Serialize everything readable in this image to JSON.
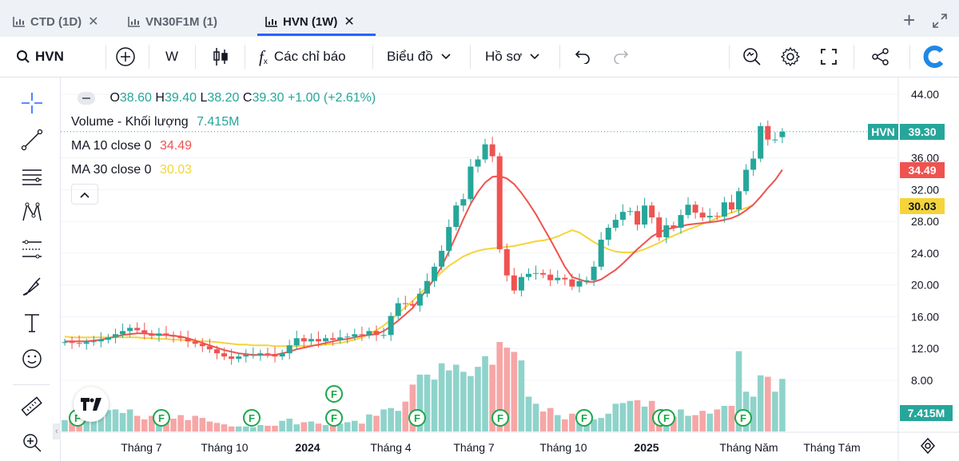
{
  "tabs": [
    {
      "label": "CTD (1D)",
      "active": false
    },
    {
      "label": "VN30F1M (1)",
      "active": false
    },
    {
      "label": "HVN (1W)",
      "active": true
    }
  ],
  "toolbar": {
    "symbol": "HVN",
    "interval": "W",
    "indicators_label": "Các chỉ báo",
    "chart_type_label": "Biểu đồ",
    "profile_label": "Hồ sơ"
  },
  "legend": {
    "open_label": "O",
    "open": "38.60",
    "high_label": "H",
    "high": "39.40",
    "low_label": "L",
    "low": "38.20",
    "close_label": "C",
    "close": "39.30",
    "change": "+1.00 (+2.61%)",
    "volume_label": "Volume - Khối lượng",
    "volume_value": "7.415M",
    "ma10_label": "MA 10 close 0",
    "ma10_value": "34.49",
    "ma30_label": "MA 30 close 0",
    "ma30_value": "30.03"
  },
  "price_tags": {
    "symbol": "HVN",
    "last": "39.30",
    "ma10": "34.49",
    "ma30": "30.03",
    "volume": "7.415M"
  },
  "colors": {
    "up": "#26a69a",
    "down": "#ef5350",
    "ma10": "#ef5350",
    "ma30": "#f5d43a",
    "accent": "#2962ff",
    "vol_up": "#8fd3cb",
    "vol_down": "#f6a6a6"
  },
  "chart_data": {
    "type": "candlestick",
    "ylim": [
      8,
      44
    ],
    "y_ticks": [
      "44.00",
      "36.00",
      "32.00",
      "28.00",
      "24.00",
      "20.00",
      "16.00",
      "12.00",
      "8.00"
    ],
    "x_ticks": [
      "Tháng 7",
      "Tháng 10",
      "2024",
      "Tháng 4",
      "Tháng 7",
      "Tháng 10",
      "2025",
      "Tháng Năm",
      "Tháng Tám"
    ],
    "closes": [
      12.8,
      12.7,
      12.6,
      12.8,
      12.9,
      13.1,
      13.4,
      13.8,
      14.2,
      14.6,
      14.3,
      13.9,
      13.6,
      13.9,
      13.7,
      13.5,
      13.3,
      12.9,
      12.6,
      12.3,
      11.9,
      11.4,
      11.0,
      10.7,
      11.0,
      11.2,
      11.2,
      11.4,
      11.3,
      11.0,
      11.4,
      12.4,
      13.3,
      12.9,
      13.2,
      12.9,
      13.3,
      13.1,
      13.4,
      13.5,
      13.8,
      13.7,
      14.2,
      13.7,
      13.7,
      16.1,
      17.7,
      17.6,
      17.4,
      18.9,
      20.5,
      22.3,
      24.3,
      27.3,
      30.0,
      30.8,
      34.9,
      35.8,
      37.7,
      36.2,
      24.5,
      21.2,
      19.3,
      21.0,
      21.4,
      21.5,
      21.3,
      20.6,
      20.9,
      20.7,
      19.8,
      20.5,
      20.6,
      22.3,
      25.7,
      27.2,
      28.2,
      29.2,
      29.3,
      27.6,
      30.0,
      28.5,
      26.0,
      27.5,
      27.2,
      28.8,
      30.1,
      29.1,
      28.5,
      28.7,
      28.6,
      30.4,
      29.5,
      31.8,
      34.5,
      35.9,
      40.0,
      38.3,
      38.3,
      39.3
    ],
    "opens": [
      12.8,
      12.8,
      12.7,
      12.6,
      12.8,
      12.9,
      13.1,
      13.4,
      13.8,
      14.2,
      14.6,
      14.3,
      13.9,
      13.6,
      13.9,
      13.7,
      13.5,
      13.3,
      12.9,
      12.6,
      12.3,
      11.9,
      11.4,
      11.0,
      10.7,
      11.0,
      11.2,
      11.2,
      11.4,
      11.3,
      11.0,
      11.4,
      12.4,
      13.3,
      12.9,
      13.2,
      12.9,
      13.3,
      13.1,
      13.4,
      13.5,
      13.8,
      13.7,
      14.2,
      13.7,
      13.7,
      16.1,
      17.7,
      17.6,
      17.4,
      18.9,
      20.5,
      22.3,
      24.3,
      27.3,
      30.0,
      30.8,
      34.9,
      35.8,
      37.7,
      36.2,
      24.5,
      21.2,
      19.3,
      21.0,
      21.4,
      21.5,
      21.3,
      20.6,
      20.9,
      20.7,
      19.8,
      20.5,
      20.6,
      22.3,
      25.7,
      27.2,
      28.2,
      29.2,
      29.3,
      27.6,
      30.0,
      28.5,
      26.0,
      27.5,
      27.2,
      28.8,
      30.1,
      29.1,
      28.5,
      28.7,
      28.6,
      30.4,
      29.5,
      31.8,
      34.5,
      35.9,
      40.0,
      38.3,
      38.6
    ],
    "volumes_M": [
      1.6,
      2.1,
      2.5,
      1.9,
      2.2,
      2.8,
      3.0,
      3.1,
      2.6,
      3.1,
      2.2,
      1.7,
      2.2,
      2.5,
      1.9,
      1.8,
      2.3,
      1.6,
      2.2,
      1.9,
      1.4,
      1.2,
      1.0,
      0.7,
      0.7,
      0.7,
      0.6,
      0.9,
      0.8,
      0.8,
      1.5,
      1.8,
      1.0,
      1.3,
      1.4,
      1.1,
      0.9,
      1.4,
      1.1,
      1.3,
      1.5,
      1.1,
      2.4,
      2.2,
      3.1,
      3.3,
      2.9,
      4.2,
      6.6,
      8.0,
      8.0,
      7.3,
      9.6,
      8.6,
      9.4,
      8.4,
      7.8,
      9.1,
      10.6,
      9.4,
      12.6,
      11.8,
      11.2,
      10.0,
      4.9,
      3.9,
      2.8,
      3.3,
      2.3,
      1.7,
      2.5,
      2.2,
      2.0,
      1.7,
      1.9,
      2.5,
      3.9,
      4.0,
      4.3,
      4.4,
      3.5,
      4.3,
      2.5,
      2.1,
      2.1,
      3.1,
      2.2,
      2.3,
      2.9,
      2.5,
      3.1,
      3.6,
      3.6,
      11.3,
      5.6,
      4.9,
      7.9,
      7.7,
      5.6,
      7.4
    ],
    "ma10": [
      12.9,
      12.9,
      12.9,
      12.9,
      13.0,
      13.1,
      13.3,
      13.5,
      13.7,
      13.8,
      13.9,
      13.9,
      13.8,
      13.7,
      13.7,
      13.6,
      13.5,
      13.3,
      13.0,
      12.7,
      12.4,
      12.1,
      11.8,
      11.6,
      11.4,
      11.3,
      11.2,
      11.2,
      11.2,
      11.2,
      11.4,
      11.6,
      11.9,
      12.1,
      12.3,
      12.5,
      12.7,
      12.9,
      13.1,
      13.2,
      13.4,
      13.6,
      13.7,
      13.8,
      14.2,
      14.8,
      15.5,
      16.3,
      17.1,
      18.3,
      19.5,
      20.8,
      22.3,
      24.2,
      26.2,
      28.3,
      30.2,
      31.7,
      32.9,
      33.6,
      33.7,
      33.4,
      32.7,
      31.6,
      30.3,
      28.9,
      27.3,
      25.7,
      24.0,
      22.3,
      21.0,
      20.7,
      20.4,
      20.4,
      20.7,
      21.3,
      21.9,
      22.7,
      23.6,
      24.5,
      25.3,
      26.1,
      26.6,
      27.0,
      27.2,
      27.4,
      27.6,
      27.7,
      27.8,
      27.9,
      28.0,
      28.2,
      28.4,
      28.8,
      29.4,
      30.1,
      31.1,
      32.2,
      33.2,
      34.5
    ],
    "ma30": [
      13.5,
      13.4,
      13.4,
      13.4,
      13.4,
      13.4,
      13.4,
      13.4,
      13.4,
      13.4,
      13.4,
      13.3,
      13.3,
      13.2,
      13.2,
      13.1,
      13.1,
      13.0,
      13.0,
      12.9,
      12.9,
      12.8,
      12.7,
      12.6,
      12.5,
      12.5,
      12.4,
      12.4,
      12.4,
      12.3,
      12.3,
      12.3,
      12.3,
      12.3,
      12.4,
      12.4,
      12.5,
      12.6,
      12.7,
      12.9,
      13.1,
      13.4,
      13.8,
      14.3,
      14.9,
      15.6,
      16.4,
      17.2,
      18.0,
      18.9,
      19.8,
      20.7,
      21.6,
      22.4,
      23.0,
      23.6,
      24.0,
      24.3,
      24.5,
      24.6,
      24.7,
      24.8,
      24.9,
      25.1,
      25.3,
      25.5,
      25.6,
      25.8,
      26.1,
      26.5,
      26.9,
      26.6,
      26.0,
      25.4,
      24.9,
      24.5,
      24.2,
      24.1,
      24.1,
      24.2,
      24.5,
      24.9,
      25.3,
      25.8,
      26.2,
      26.6,
      27.0,
      27.3,
      27.7,
      28.0,
      28.4,
      28.8,
      29.1,
      29.4,
      29.7,
      30.03
    ]
  }
}
